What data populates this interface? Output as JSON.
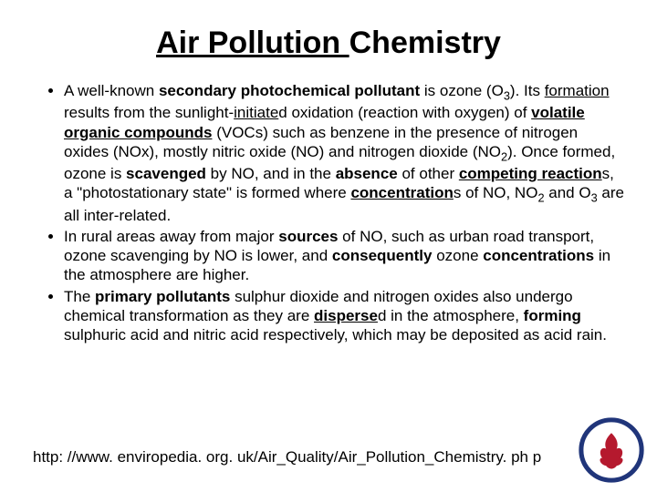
{
  "title": {
    "underlined": "Air Pollution ",
    "plain": "Chemistry"
  },
  "bullets": [
    {
      "parts": [
        {
          "t": "A well-known "
        },
        {
          "t": "secondary photochemical pollutant",
          "b": true
        },
        {
          "t": " is ozone (O"
        },
        {
          "t": "3",
          "sub": true
        },
        {
          "t": "). Its "
        },
        {
          "t": "formation",
          "u": true
        },
        {
          "t": " results from the sunlight-"
        },
        {
          "t": "initiate",
          "u": true
        },
        {
          "t": "d oxidation (reaction with oxygen) of "
        },
        {
          "t": "volatile organic compounds",
          "b": true,
          "u": true
        },
        {
          "t": " (VOCs) such as benzene in the presence of nitrogen oxides (NOx), mostly nitric oxide (NO) and nitrogen dioxide (NO"
        },
        {
          "t": "2",
          "sub": true
        },
        {
          "t": "). Once formed, ozone is "
        },
        {
          "t": "scavenged",
          "b": true
        },
        {
          "t": " by NO, and in the "
        },
        {
          "t": "absence",
          "b": true
        },
        {
          "t": " of other "
        },
        {
          "t": "competing reaction",
          "b": true,
          "u": true
        },
        {
          "t": "s, a \"photostationary state\" is formed where "
        },
        {
          "t": "concentration",
          "b": true,
          "u": true
        },
        {
          "t": "s of NO, NO"
        },
        {
          "t": "2",
          "sub": true
        },
        {
          "t": " and O"
        },
        {
          "t": "3",
          "sub": true
        },
        {
          "t": " are all inter-related."
        }
      ]
    },
    {
      "parts": [
        {
          "t": "In rural areas away from major "
        },
        {
          "t": "sources",
          "b": true
        },
        {
          "t": " of NO, such as urban road transport, ozone scavenging by NO is lower, and "
        },
        {
          "t": "consequently",
          "b": true
        },
        {
          "t": " ozone "
        },
        {
          "t": "concentrations",
          "b": true
        },
        {
          "t": " in the atmosphere are higher."
        }
      ]
    },
    {
      "parts": [
        {
          "t": "The "
        },
        {
          "t": "primary pollutants",
          "b": true
        },
        {
          "t": " sulphur dioxide and nitrogen oxides also undergo chemical transformation as they are "
        },
        {
          "t": "disperse",
          "b": true,
          "u": true
        },
        {
          "t": "d in the atmosphere, "
        },
        {
          "t": "forming",
          "b": true
        },
        {
          "t": " sulphuric acid and nitric acid respectively, which may be deposited as acid rain."
        }
      ]
    }
  ],
  "footer_url": "http: //www. enviropedia. org. uk/Air_Quality/Air_Pollution_Chemistry. ph p",
  "logo": {
    "outer_color": "#20357a",
    "inner_bg": "#ffffff",
    "accent_color": "#b5192e"
  },
  "colors": {
    "text": "#000000",
    "background": "#ffffff"
  }
}
